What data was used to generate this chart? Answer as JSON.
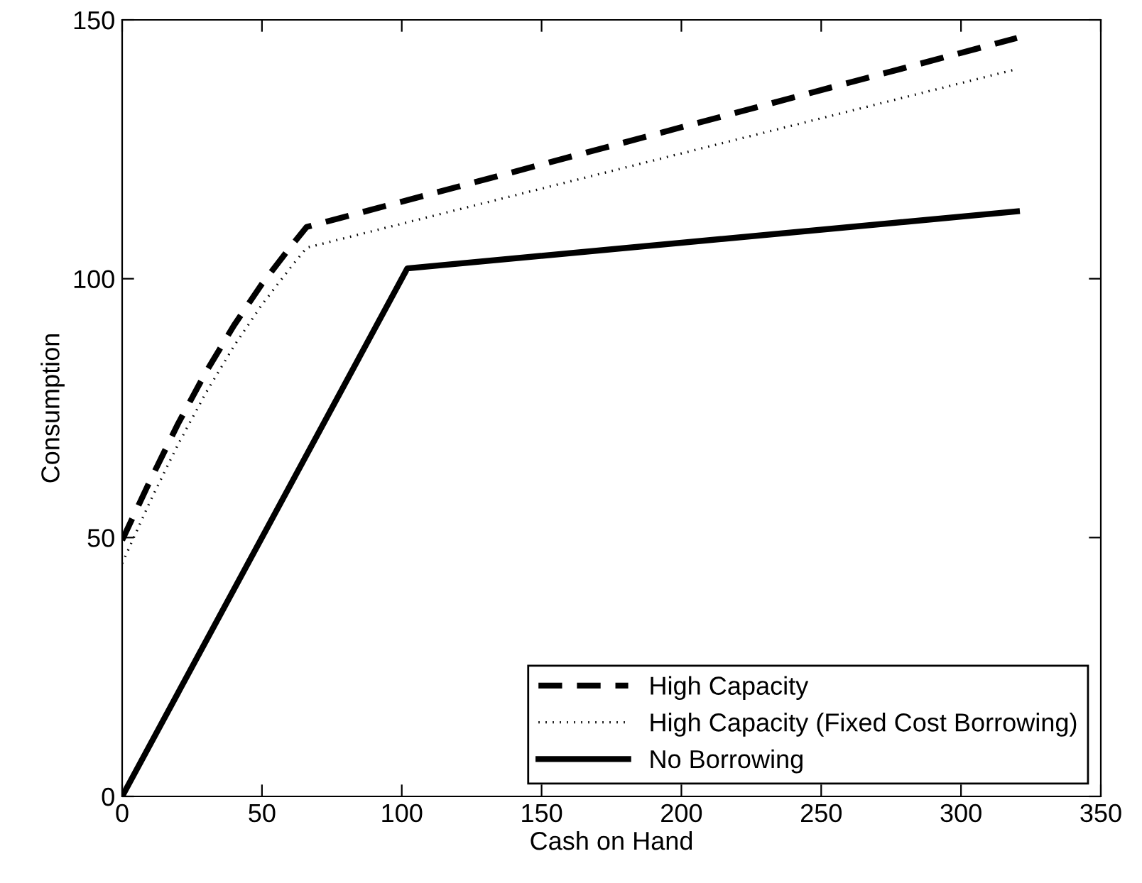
{
  "chart_data": {
    "type": "line",
    "xlabel": "Cash on Hand",
    "ylabel": "Consumption",
    "xlim": [
      0,
      350
    ],
    "ylim": [
      0,
      150
    ],
    "xticks": [
      0,
      50,
      100,
      150,
      200,
      250,
      300,
      350
    ],
    "yticks": [
      0,
      50,
      100,
      150
    ],
    "grid": false,
    "legend": "bottom right",
    "series": [
      {
        "name": "High Capacity",
        "color": "#000000",
        "line_style": "dashed",
        "x": [
          0,
          10,
          20,
          30,
          40,
          50,
          60,
          66,
          320
        ],
        "values": [
          49.5,
          61,
          72,
          82,
          91,
          99,
          106,
          110,
          146.5
        ]
      },
      {
        "name": "High Capacity (Fixed Cost Borrowing)",
        "color": "#000000",
        "line_style": "dotted",
        "x": [
          0,
          10,
          20,
          30,
          40,
          50,
          60,
          66,
          320
        ],
        "values": [
          45,
          57,
          68,
          78,
          87,
          95,
          102,
          106,
          140.5
        ]
      },
      {
        "name": "No Borrowing",
        "color": "#000000",
        "line_style": "solid",
        "x": [
          0,
          102,
          320
        ],
        "values": [
          0,
          102,
          113
        ]
      }
    ]
  }
}
